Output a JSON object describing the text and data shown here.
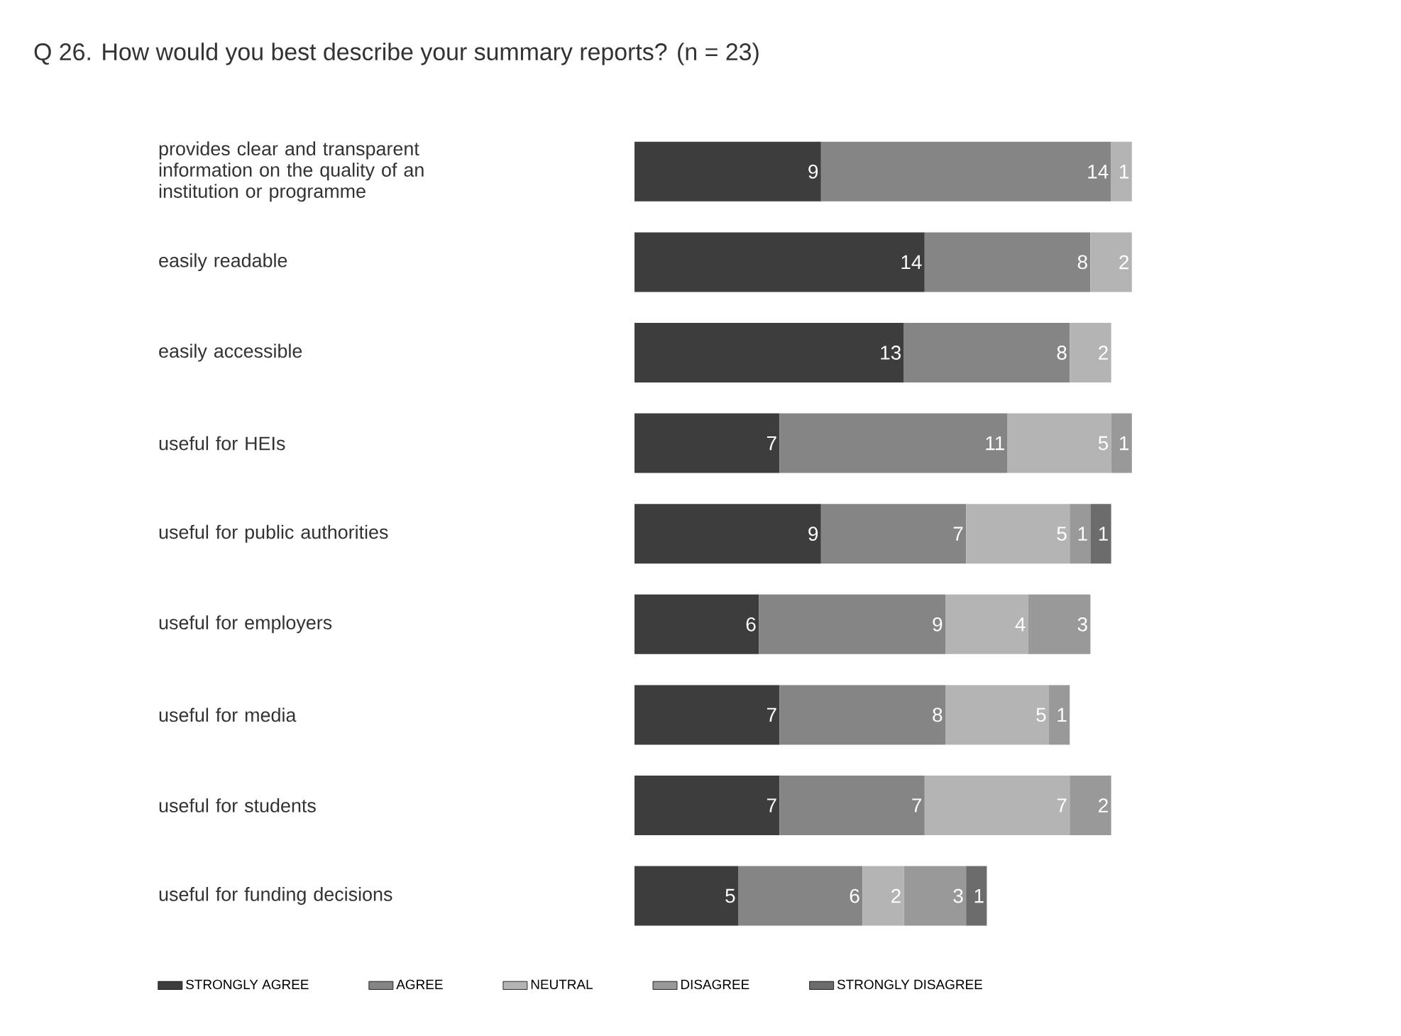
{
  "chart_data": {
    "type": "bar",
    "orientation": "horizontal",
    "stacked": true,
    "data_labels": true,
    "legend": "bottom",
    "title": "Q 26. How would you best describe your summary reports? (n = 23)",
    "categories": [
      "provides clear and transparent information on the quality of an institution or programme",
      "easily readable",
      "easily accessible",
      "useful for HEIs",
      "useful for public authorities",
      "useful for employers",
      "useful for media",
      "useful for students",
      "useful for funding decisions"
    ],
    "series": [
      {
        "name": "STRONGLY AGREE",
        "color": "#3d3d3d",
        "values": [
          9,
          14,
          13,
          7,
          9,
          6,
          7,
          7,
          5
        ]
      },
      {
        "name": "AGREE",
        "color": "#858585",
        "values": [
          14,
          8,
          8,
          11,
          7,
          9,
          8,
          7,
          6
        ]
      },
      {
        "name": "NEUTRAL",
        "color": "#b4b4b4",
        "values": [
          1,
          2,
          2,
          5,
          5,
          4,
          5,
          7,
          2
        ]
      },
      {
        "name": "DISAGREE",
        "color": "#999999",
        "values": [
          null,
          null,
          null,
          1,
          1,
          3,
          1,
          2,
          3
        ]
      },
      {
        "name": "STRONGLY DISAGREE",
        "color": "#6c6c6c",
        "values": [
          null,
          null,
          null,
          null,
          1,
          null,
          null,
          null,
          1
        ]
      }
    ]
  }
}
